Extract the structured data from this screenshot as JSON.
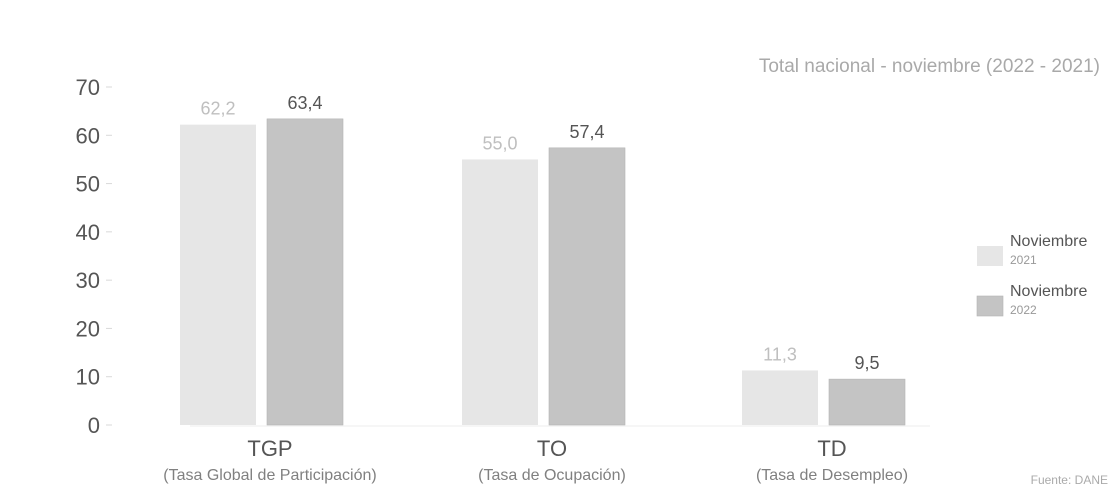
{
  "chart_data": {
    "type": "bar",
    "title": "",
    "subtitle": "Total nacional - noviembre (2022 - 2021)",
    "ylabel": "",
    "xlabel": "",
    "ylim": [
      0,
      70
    ],
    "yticks": [
      0,
      10,
      20,
      30,
      40,
      50,
      60,
      70
    ],
    "categories": [
      "TGP",
      "TO",
      "TD"
    ],
    "category_descriptions": [
      "(Tasa Global de Participación)",
      "(Tasa de Ocupación)",
      "(Tasa de Desempleo)"
    ],
    "series": [
      {
        "name": "Noviembre",
        "period": "2021",
        "values": [
          62.2,
          55.0,
          11.3
        ],
        "value_labels": [
          "62,2",
          "55,0",
          "11,3"
        ],
        "color": "#e6e6e6"
      },
      {
        "name": "Noviembre",
        "period": "2022",
        "values": [
          63.4,
          57.4,
          9.5
        ],
        "value_labels": [
          "63,4",
          "57,4",
          "9,5"
        ],
        "color": "#c4c4c4"
      }
    ],
    "legend": {
      "placement": "right",
      "entries": [
        {
          "label": "Noviembre",
          "sub": "2021"
        },
        {
          "label": "Noviembre",
          "sub": "2022"
        }
      ]
    },
    "grid": false,
    "source": "Fuente: DANE"
  }
}
